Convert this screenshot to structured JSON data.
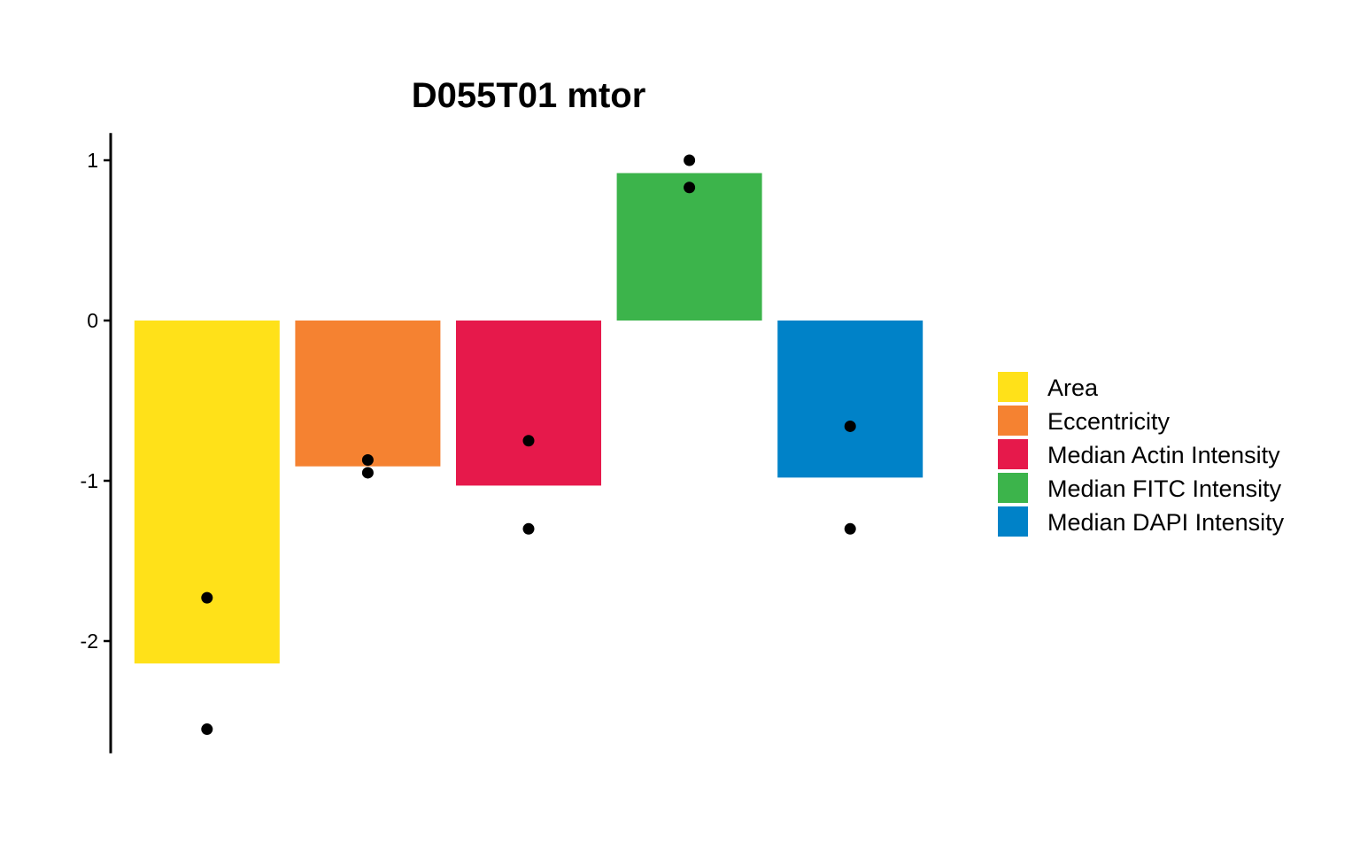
{
  "chart_data": {
    "type": "bar",
    "title": "D055T01 mtor",
    "xlabel": "",
    "ylabel": "",
    "ylim": [
      -2.7,
      1.17
    ],
    "yticks": [
      1,
      0,
      -1,
      -2
    ],
    "categories": [
      "Area",
      "Eccentricity",
      "Median Actin Intensity",
      "Median FITC Intensity",
      "Median DAPI Intensity"
    ],
    "values": [
      -2.14,
      -0.91,
      -1.03,
      0.92,
      -0.98
    ],
    "points": [
      [
        -1.73,
        -2.55
      ],
      [
        -0.87,
        -0.95
      ],
      [
        -0.75,
        -1.3
      ],
      [
        1.0,
        0.83
      ],
      [
        -0.66,
        -1.3
      ]
    ],
    "colors": [
      "#FFE119",
      "#F58231",
      "#E6194B",
      "#3CB44B",
      "#0082C8"
    ],
    "legend": {
      "position": "right",
      "entries": [
        "Area",
        "Eccentricity",
        "Median Actin Intensity",
        "Median FITC Intensity",
        "Median DAPI Intensity"
      ]
    },
    "grid": false
  }
}
